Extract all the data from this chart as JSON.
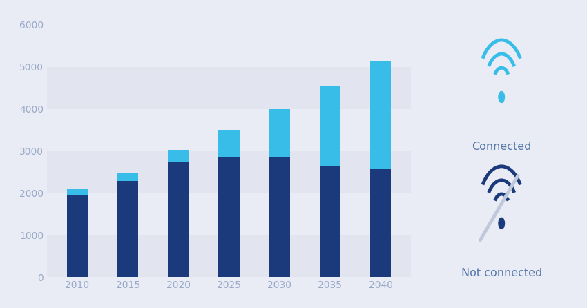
{
  "categories": [
    2010,
    2015,
    2020,
    2025,
    2030,
    2035,
    2040
  ],
  "not_connected": [
    1950,
    2280,
    2750,
    2850,
    2850,
    2650,
    2580
  ],
  "connected": [
    150,
    200,
    280,
    650,
    1150,
    1900,
    2550
  ],
  "bar_width": 0.42,
  "ylim": [
    0,
    6000
  ],
  "yticks": [
    0,
    1000,
    2000,
    3000,
    4000,
    5000,
    6000
  ],
  "color_not_connected": "#1a3a7c",
  "color_connected": "#38bde8",
  "bg_color": "#eaecf5",
  "band_colors": [
    "#e2e5f0",
    "#eaecf5",
    "#e2e5f0",
    "#eaecf5",
    "#e2e5f0",
    "#eaecf5"
  ],
  "band_ranges": [
    [
      0,
      1000
    ],
    [
      1000,
      2000
    ],
    [
      2000,
      3000
    ],
    [
      3000,
      4000
    ],
    [
      4000,
      5000
    ],
    [
      5000,
      6000
    ]
  ],
  "legend_connected_text": "Connected",
  "legend_not_connected_text": "Not connected",
  "legend_text_color": "#5577aa",
  "axis_text_color": "#99aac8",
  "figure_bg": "#eaecf5"
}
